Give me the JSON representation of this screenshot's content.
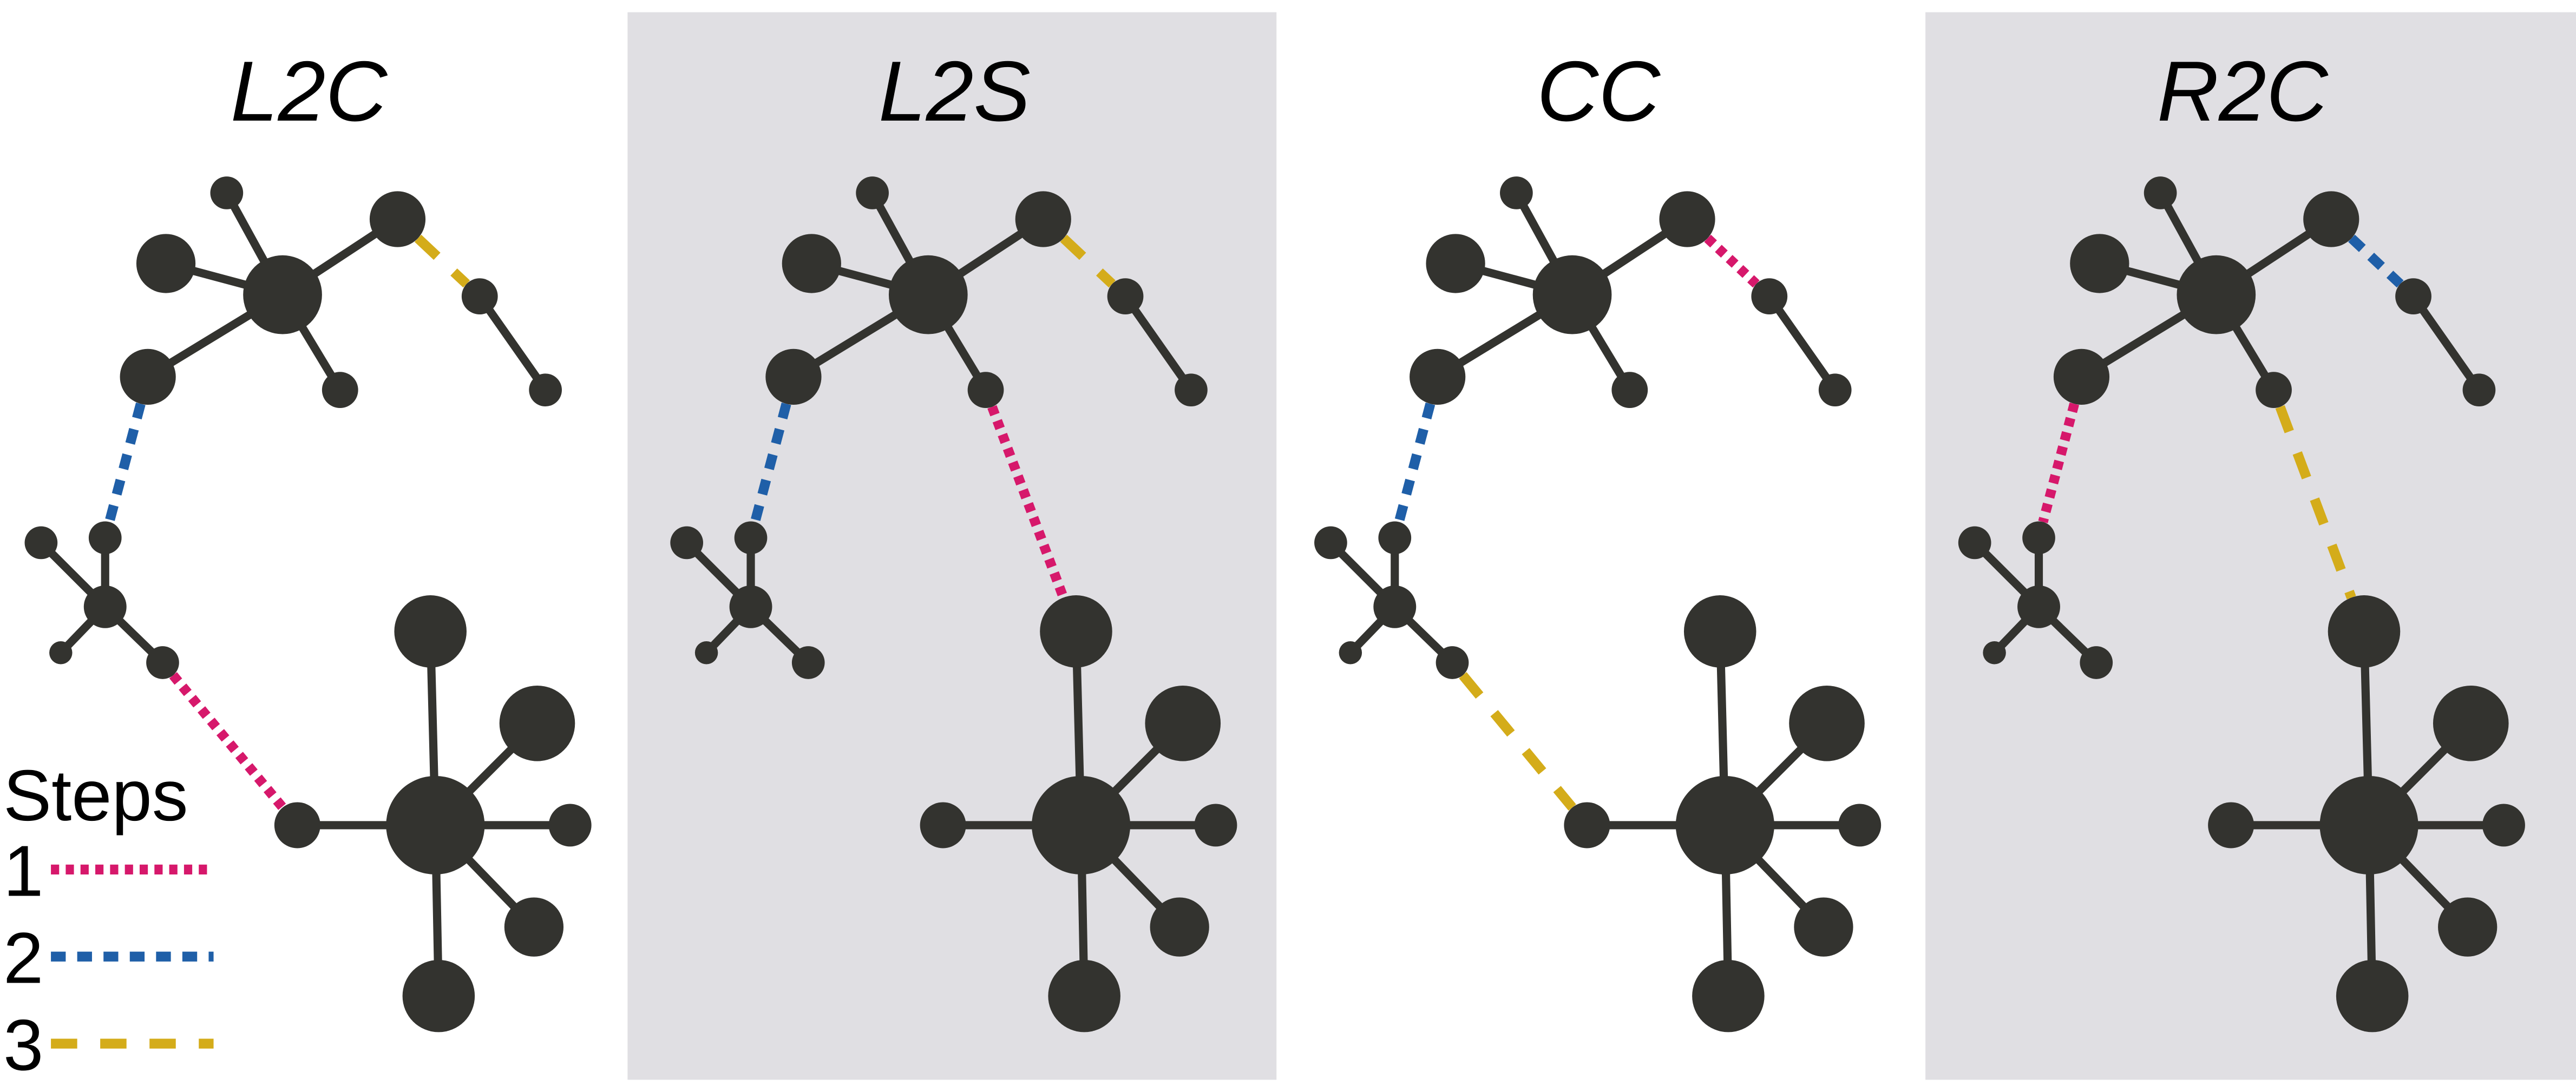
{
  "panels": [
    {
      "title": "L2C"
    },
    {
      "title": "L2S"
    },
    {
      "title": "CC"
    },
    {
      "title": "R2C"
    }
  ],
  "legend": {
    "title": "Steps",
    "items": [
      {
        "label": "1"
      },
      {
        "label": "2"
      },
      {
        "label": "3"
      }
    ]
  }
}
